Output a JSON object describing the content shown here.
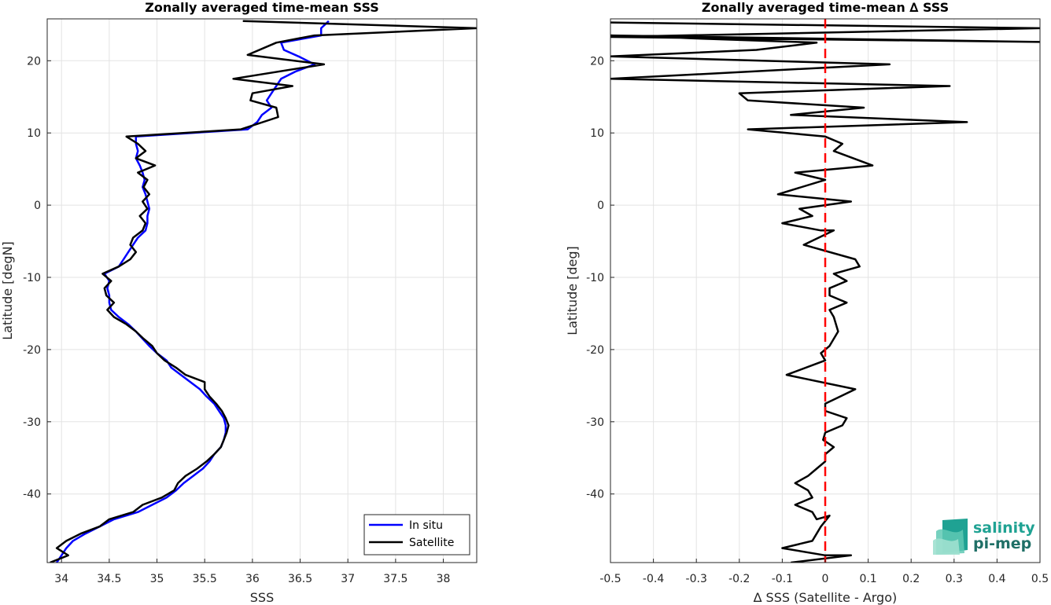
{
  "chart_data": [
    {
      "type": "line",
      "title": "Zonally averaged time-mean SSS",
      "xlabel": "SSS",
      "ylabel": "Latitude [degN]",
      "xlim": [
        33.85,
        38.35
      ],
      "ylim": [
        -49.5,
        25.8
      ],
      "xticks": [
        "34",
        "34.5",
        "35",
        "35.5",
        "36",
        "36.5",
        "37",
        "37.5",
        "38"
      ],
      "xtick_values": [
        34,
        34.5,
        35,
        35.5,
        36,
        36.5,
        37,
        37.5,
        38
      ],
      "yticks": [
        "20",
        "10",
        "0",
        "-10",
        "-20",
        "-30",
        "-40"
      ],
      "ytick_values": [
        20,
        10,
        0,
        -10,
        -20,
        -30,
        -40
      ],
      "grid": true,
      "legend_position": "bottom-right",
      "series": [
        {
          "name": "In situ",
          "color": "#0000ff",
          "points": [
            [
              36.8,
              25.5
            ],
            [
              36.72,
              24.5
            ],
            [
              36.72,
              23.5
            ],
            [
              36.3,
              22.5
            ],
            [
              36.33,
              21.5
            ],
            [
              36.5,
              20.5
            ],
            [
              36.65,
              19.5
            ],
            [
              36.45,
              18.5
            ],
            [
              36.3,
              17.5
            ],
            [
              36.25,
              16.5
            ],
            [
              36.2,
              15.5
            ],
            [
              36.15,
              14.5
            ],
            [
              36.2,
              13.5
            ],
            [
              36.1,
              12.5
            ],
            [
              36.05,
              11.5
            ],
            [
              35.95,
              10.5
            ],
            [
              34.78,
              9.5
            ],
            [
              34.78,
              8.5
            ],
            [
              34.8,
              7.5
            ],
            [
              34.78,
              6.5
            ],
            [
              34.82,
              5.5
            ],
            [
              34.85,
              4.5
            ],
            [
              34.87,
              3.5
            ],
            [
              34.85,
              2.5
            ],
            [
              34.88,
              1.5
            ],
            [
              34.9,
              0.5
            ],
            [
              34.92,
              -0.5
            ],
            [
              34.9,
              -1.5
            ],
            [
              34.9,
              -2.5
            ],
            [
              34.88,
              -3.5
            ],
            [
              34.8,
              -4.5
            ],
            [
              34.75,
              -5.5
            ],
            [
              34.7,
              -6.5
            ],
            [
              34.65,
              -7.5
            ],
            [
              34.6,
              -8.5
            ],
            [
              34.45,
              -9.5
            ],
            [
              34.5,
              -10.5
            ],
            [
              34.48,
              -11.5
            ],
            [
              34.5,
              -12.5
            ],
            [
              34.5,
              -13.5
            ],
            [
              34.52,
              -14.5
            ],
            [
              34.6,
              -15.5
            ],
            [
              34.7,
              -16.5
            ],
            [
              34.78,
              -17.5
            ],
            [
              34.85,
              -18.5
            ],
            [
              34.92,
              -19.5
            ],
            [
              35.0,
              -20.5
            ],
            [
              35.1,
              -21.5
            ],
            [
              35.15,
              -22.5
            ],
            [
              35.25,
              -23.5
            ],
            [
              35.35,
              -24.5
            ],
            [
              35.45,
              -25.5
            ],
            [
              35.52,
              -26.5
            ],
            [
              35.6,
              -27.5
            ],
            [
              35.65,
              -28.5
            ],
            [
              35.7,
              -29.5
            ],
            [
              35.72,
              -30.5
            ],
            [
              35.72,
              -31.5
            ],
            [
              35.7,
              -32.5
            ],
            [
              35.67,
              -33.5
            ],
            [
              35.6,
              -34.5
            ],
            [
              35.55,
              -35.5
            ],
            [
              35.48,
              -36.5
            ],
            [
              35.38,
              -37.5
            ],
            [
              35.28,
              -38.5
            ],
            [
              35.2,
              -39.5
            ],
            [
              35.1,
              -40.5
            ],
            [
              34.95,
              -41.5
            ],
            [
              34.8,
              -42.5
            ],
            [
              34.55,
              -43.5
            ],
            [
              34.4,
              -44.5
            ],
            [
              34.25,
              -45.5
            ],
            [
              34.12,
              -46.5
            ],
            [
              34.05,
              -47.5
            ],
            [
              34.0,
              -48.5
            ],
            [
              33.95,
              -49.5
            ]
          ]
        },
        {
          "name": "Satellite",
          "color": "#000000",
          "points": [
            [
              35.9,
              25.5
            ],
            [
              38.35,
              24.5
            ],
            [
              36.65,
              23.5
            ],
            [
              36.25,
              22.5
            ],
            [
              35.95,
              20.8
            ],
            [
              36.75,
              19.5
            ],
            [
              35.8,
              17.5
            ],
            [
              36.42,
              16.5
            ],
            [
              36.0,
              15.5
            ],
            [
              35.98,
              14.5
            ],
            [
              36.25,
              13.5
            ],
            [
              36.27,
              12.2
            ],
            [
              35.88,
              10.5
            ],
            [
              34.68,
              9.5
            ],
            [
              34.8,
              8.5
            ],
            [
              34.88,
              7.5
            ],
            [
              34.78,
              6.5
            ],
            [
              34.98,
              5.5
            ],
            [
              34.8,
              4.5
            ],
            [
              34.9,
              3.5
            ],
            [
              34.86,
              2.5
            ],
            [
              34.92,
              1.5
            ],
            [
              34.85,
              0.5
            ],
            [
              34.9,
              -0.5
            ],
            [
              34.82,
              -1.5
            ],
            [
              34.88,
              -2.5
            ],
            [
              34.85,
              -3.5
            ],
            [
              34.75,
              -4.5
            ],
            [
              34.72,
              -5.5
            ],
            [
              34.78,
              -6.5
            ],
            [
              34.72,
              -7.5
            ],
            [
              34.6,
              -8.5
            ],
            [
              34.43,
              -9.5
            ],
            [
              34.52,
              -10.5
            ],
            [
              34.45,
              -11.5
            ],
            [
              34.47,
              -12.5
            ],
            [
              34.55,
              -13.5
            ],
            [
              34.48,
              -14.5
            ],
            [
              34.55,
              -15.5
            ],
            [
              34.68,
              -16.5
            ],
            [
              34.78,
              -17.5
            ],
            [
              34.86,
              -18.5
            ],
            [
              34.95,
              -19.5
            ],
            [
              35.0,
              -20.5
            ],
            [
              35.08,
              -21.5
            ],
            [
              35.2,
              -22.5
            ],
            [
              35.3,
              -23.5
            ],
            [
              35.5,
              -24.5
            ],
            [
              35.5,
              -25.5
            ],
            [
              35.55,
              -26.5
            ],
            [
              35.62,
              -27.5
            ],
            [
              35.68,
              -28.5
            ],
            [
              35.72,
              -29.5
            ],
            [
              35.75,
              -30.5
            ],
            [
              35.73,
              -31.5
            ],
            [
              35.7,
              -32.5
            ],
            [
              35.67,
              -33.5
            ],
            [
              35.6,
              -34.5
            ],
            [
              35.52,
              -35.5
            ],
            [
              35.42,
              -36.5
            ],
            [
              35.3,
              -37.5
            ],
            [
              35.22,
              -38.5
            ],
            [
              35.18,
              -39.5
            ],
            [
              35.05,
              -40.5
            ],
            [
              34.85,
              -41.5
            ],
            [
              34.75,
              -42.5
            ],
            [
              34.5,
              -43.5
            ],
            [
              34.4,
              -44.5
            ],
            [
              34.2,
              -45.5
            ],
            [
              34.05,
              -46.5
            ],
            [
              33.95,
              -47.5
            ],
            [
              34.07,
              -48.5
            ],
            [
              33.88,
              -49.5
            ]
          ]
        }
      ]
    },
    {
      "type": "line",
      "title": "Zonally averaged time-mean ∆ SSS",
      "xlabel": "∆ SSS (Satellite - Argo)",
      "ylabel": "Latitude [deg]",
      "xlim": [
        -0.5,
        0.5
      ],
      "ylim": [
        -49.5,
        25.8
      ],
      "xticks": [
        "-0.5",
        "-0.4",
        "-0.3",
        "-0.2",
        "-0.1",
        "0",
        "0.1",
        "0.2",
        "0.3",
        "0.4",
        "0.5"
      ],
      "xtick_values": [
        -0.5,
        -0.4,
        -0.3,
        -0.2,
        -0.1,
        0,
        0.1,
        0.2,
        0.3,
        0.4,
        0.5
      ],
      "yticks": [
        "20",
        "10",
        "0",
        "-10",
        "-20",
        "-30",
        "-40"
      ],
      "ytick_values": [
        20,
        10,
        0,
        -10,
        -20,
        -30,
        -40
      ],
      "grid": true,
      "reference_line": {
        "x": 0,
        "color": "#ff0000",
        "style": "dashed"
      },
      "series": [
        {
          "color": "#000000",
          "points": [
            [
              -0.5,
              25.3
            ],
            [
              0.5,
              24.5
            ],
            [
              -0.5,
              23.3
            ],
            [
              0.5,
              22.6
            ],
            [
              -0.5,
              23.5
            ],
            [
              -0.02,
              22.5
            ],
            [
              -0.16,
              21.5
            ],
            [
              -0.5,
              20.6
            ],
            [
              0.15,
              19.5
            ],
            [
              -0.5,
              17.5
            ],
            [
              0.29,
              16.5
            ],
            [
              -0.2,
              15.5
            ],
            [
              -0.18,
              14.5
            ],
            [
              0.09,
              13.5
            ],
            [
              -0.08,
              12.5
            ],
            [
              0.33,
              11.5
            ],
            [
              -0.18,
              10.5
            ],
            [
              0.0,
              9.5
            ],
            [
              0.04,
              8.5
            ],
            [
              0.02,
              7.5
            ],
            [
              0.11,
              5.5
            ],
            [
              -0.07,
              4.5
            ],
            [
              0.0,
              3.5
            ],
            [
              -0.11,
              1.5
            ],
            [
              0.06,
              0.5
            ],
            [
              -0.06,
              -0.5
            ],
            [
              -0.03,
              -1.5
            ],
            [
              -0.1,
              -2.5
            ],
            [
              -0.01,
              -3.5
            ],
            [
              0.02,
              -3.5
            ],
            [
              -0.05,
              -5.5
            ],
            [
              0.07,
              -7.5
            ],
            [
              0.08,
              -8.5
            ],
            [
              0.02,
              -9.5
            ],
            [
              0.05,
              -10.5
            ],
            [
              0.01,
              -11.5
            ],
            [
              0.01,
              -12.5
            ],
            [
              0.05,
              -13.5
            ],
            [
              0.01,
              -14.5
            ],
            [
              0.02,
              -15.5
            ],
            [
              0.03,
              -17.5
            ],
            [
              0.01,
              -19.5
            ],
            [
              -0.01,
              -20.5
            ],
            [
              0.0,
              -21.5
            ],
            [
              -0.09,
              -23.5
            ],
            [
              0.07,
              -25.5
            ],
            [
              0.0,
              -27.5
            ],
            [
              0.0,
              -28.5
            ],
            [
              0.05,
              -29.5
            ],
            [
              0.04,
              -30.5
            ],
            [
              0.0,
              -31.5
            ],
            [
              -0.005,
              -32.5
            ],
            [
              0.02,
              -33.5
            ],
            [
              0.0,
              -34.5
            ],
            [
              0.0,
              -35.5
            ],
            [
              -0.02,
              -36.5
            ],
            [
              -0.04,
              -37.5
            ],
            [
              -0.07,
              -38.5
            ],
            [
              -0.04,
              -39.5
            ],
            [
              -0.03,
              -40.5
            ],
            [
              -0.07,
              -41.5
            ],
            [
              -0.03,
              -42.5
            ],
            [
              -0.02,
              -43.5
            ],
            [
              0.01,
              -43.0
            ],
            [
              -0.01,
              -44.5
            ],
            [
              -0.02,
              -45.5
            ],
            [
              -0.03,
              -46.5
            ],
            [
              -0.1,
              -47.5
            ],
            [
              0.0,
              -48.5
            ],
            [
              0.06,
              -48.5
            ],
            [
              -0.08,
              -49.5
            ]
          ]
        }
      ]
    }
  ],
  "legend": {
    "items": [
      "In situ",
      "Satellite"
    ]
  },
  "logo": {
    "line1": "salinity",
    "line2": "pi-mep"
  }
}
